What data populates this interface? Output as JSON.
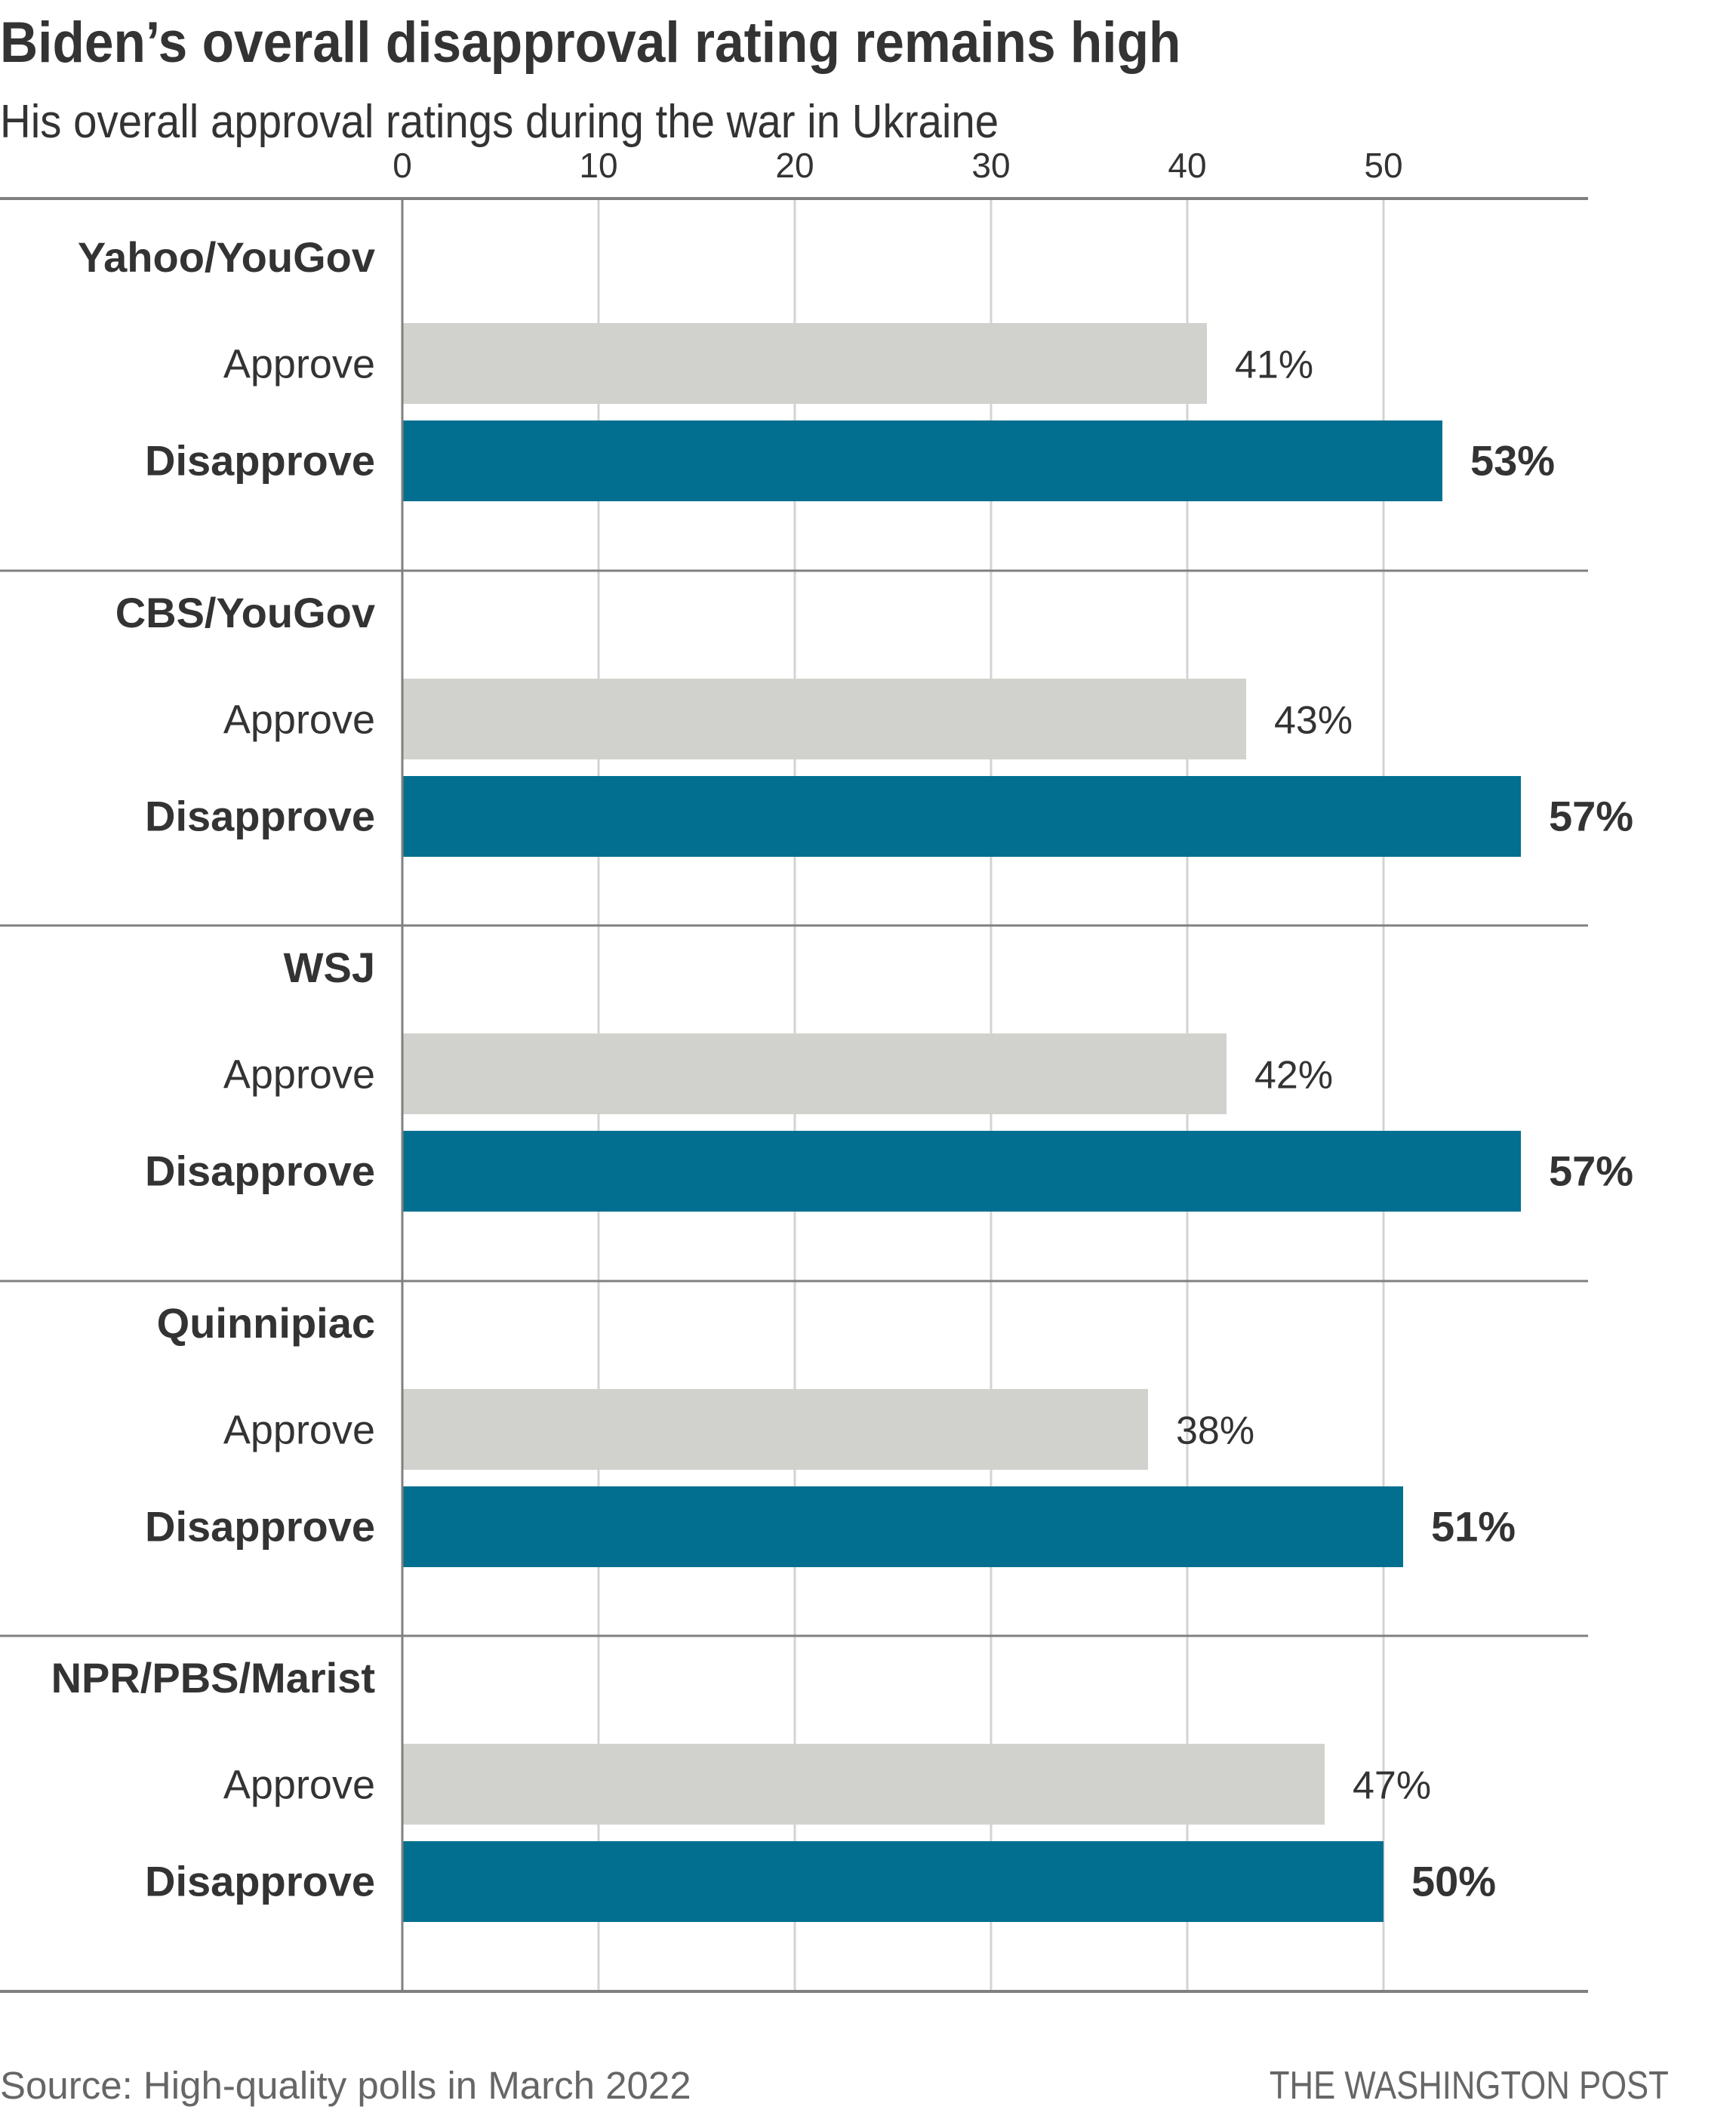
{
  "chart_data": {
    "type": "bar",
    "orientation": "horizontal",
    "title": "Biden’s overall disapproval rating remains high",
    "subtitle": "His overall approval ratings during the war in Ukraine",
    "xlabel": "",
    "ylabel": "",
    "xlim": [
      0,
      60
    ],
    "xticks": [
      0,
      10,
      20,
      30,
      40,
      50
    ],
    "tick_labels": [
      "0",
      "10",
      "20",
      "30",
      "40",
      "50"
    ],
    "grid": true,
    "value_suffix": "%",
    "categories": [
      "Yahoo/YouGov",
      "CBS/YouGov",
      "WSJ",
      "Quinnipiac",
      "NPR/PBS/Marist"
    ],
    "series": [
      {
        "name": "Approve",
        "color": "#d1d2cd",
        "label_weight": "normal",
        "values": [
          41,
          43,
          42,
          38,
          47
        ]
      },
      {
        "name": "Disapprove",
        "color": "#036f90",
        "label_weight": "bold",
        "values": [
          53,
          57,
          57,
          51,
          50
        ]
      }
    ],
    "legend": "none (series named inline per group)",
    "source": "Source: High-quality polls in March 2022",
    "credit": "THE WASHINGTON POST"
  },
  "colors": {
    "text": "#333333",
    "footer_text": "#666666",
    "rule": "#808080",
    "gridline": "#d3d3d3"
  }
}
